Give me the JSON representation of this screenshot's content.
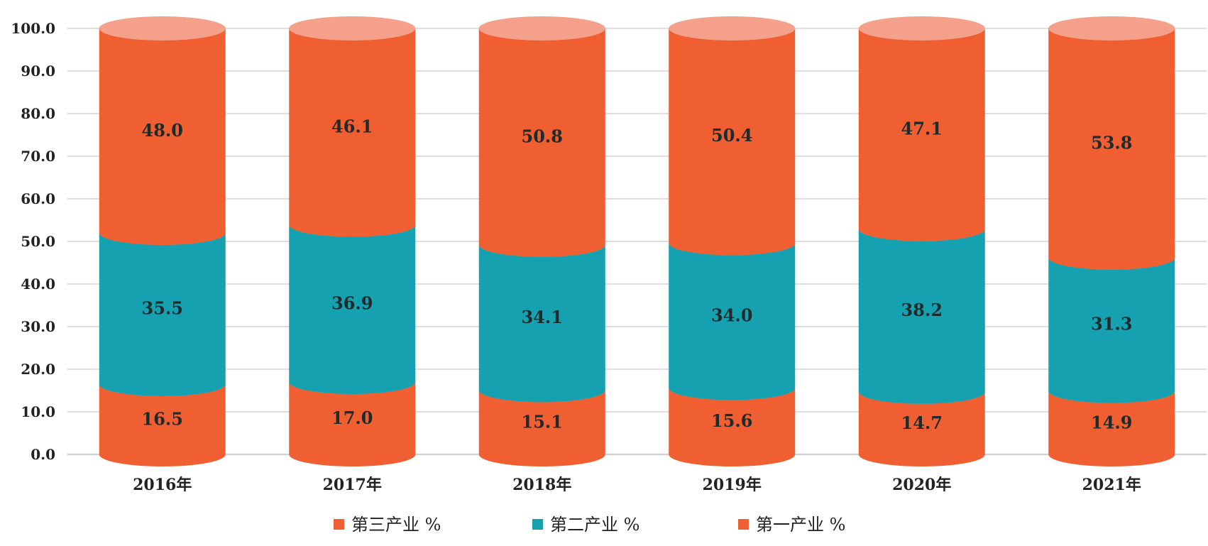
{
  "chart_data": {
    "type": "bar",
    "stacked": true,
    "style": "3d-cylinder",
    "title": "",
    "xlabel": "",
    "ylabel": "",
    "ylim": [
      0,
      100
    ],
    "yticks": [
      "0.0",
      "10.0",
      "20.0",
      "30.0",
      "40.0",
      "50.0",
      "60.0",
      "70.0",
      "80.0",
      "90.0",
      "100.0"
    ],
    "grid": true,
    "legend_position": "bottom",
    "categories": [
      "2016年",
      "2017年",
      "2018年",
      "2019年",
      "2020年",
      "2021年"
    ],
    "series": [
      {
        "name": "第一产业 %",
        "values": [
          16.5,
          17.0,
          15.1,
          15.6,
          14.7,
          14.9
        ],
        "labels": [
          "16.5",
          "17.0",
          "15.1",
          "15.6",
          "14.7",
          "14.9"
        ],
        "color": "#ef5f32",
        "top_color": "#f4a08a"
      },
      {
        "name": "第二产业 %",
        "values": [
          35.5,
          36.9,
          34.1,
          34.0,
          38.2,
          31.3
        ],
        "labels": [
          "35.5",
          "36.9",
          "34.1",
          "34.0",
          "38.2",
          "31.3"
        ],
        "color": "#16a1b1",
        "top_color": "#6dc6ce"
      },
      {
        "name": "第三产业 %",
        "values": [
          48.0,
          46.1,
          50.8,
          50.4,
          47.1,
          53.8
        ],
        "labels": [
          "48.0",
          "46.1",
          "50.8",
          "50.4",
          "47.1",
          "53.8"
        ],
        "color": "#ef5f32",
        "top_color": "#f4a08a"
      }
    ],
    "legend_order": [
      "第三产业 %",
      "第二产业 %",
      "第一产业 %"
    ]
  }
}
